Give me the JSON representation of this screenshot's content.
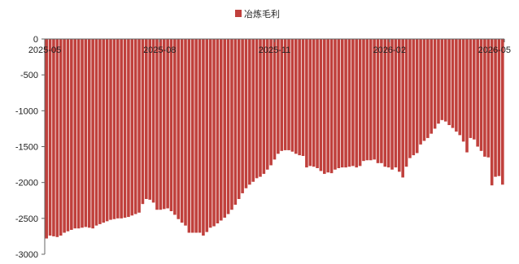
{
  "chart_data": {
    "type": "bar",
    "legend": {
      "label": "冶炼毛利",
      "placement": "top-center"
    },
    "colors": {
      "bar": "#c0403c",
      "axis": "#666666"
    },
    "x_ticks": [
      "2025-05",
      "2025-08",
      "2025-11",
      "2026-02",
      "2026-05"
    ],
    "x_range": [
      "2025-05",
      "2026-05"
    ],
    "ylim": [
      -3000,
      0
    ],
    "y_ticks": [
      0,
      -500,
      -1000,
      -1500,
      -2000,
      -2500,
      -3000
    ],
    "series": [
      {
        "name": "冶炼毛利",
        "values": [
          -2780,
          -2740,
          -2750,
          -2760,
          -2740,
          -2700,
          -2680,
          -2660,
          -2640,
          -2640,
          -2630,
          -2620,
          -2630,
          -2640,
          -2600,
          -2580,
          -2560,
          -2540,
          -2520,
          -2510,
          -2500,
          -2500,
          -2490,
          -2480,
          -2460,
          -2440,
          -2420,
          -2300,
          -2230,
          -2240,
          -2280,
          -2380,
          -2380,
          -2370,
          -2360,
          -2400,
          -2450,
          -2510,
          -2560,
          -2600,
          -2700,
          -2700,
          -2700,
          -2700,
          -2740,
          -2690,
          -2630,
          -2610,
          -2570,
          -2530,
          -2490,
          -2440,
          -2380,
          -2310,
          -2230,
          -2150,
          -2080,
          -2030,
          -1990,
          -1940,
          -1920,
          -1880,
          -1820,
          -1760,
          -1680,
          -1600,
          -1560,
          -1550,
          -1550,
          -1570,
          -1600,
          -1620,
          -1630,
          -1790,
          -1770,
          -1780,
          -1800,
          -1840,
          -1880,
          -1860,
          -1870,
          -1820,
          -1800,
          -1790,
          -1790,
          -1780,
          -1770,
          -1790,
          -1770,
          -1700,
          -1690,
          -1690,
          -1680,
          -1730,
          -1730,
          -1780,
          -1790,
          -1820,
          -1790,
          -1850,
          -1930,
          -1780,
          -1660,
          -1620,
          -1590,
          -1470,
          -1420,
          -1380,
          -1320,
          -1250,
          -1180,
          -1130,
          -1150,
          -1200,
          -1240,
          -1290,
          -1340,
          -1430,
          -1580,
          -1380,
          -1400,
          -1500,
          -1560,
          -1640,
          -1650,
          -2040,
          -1920,
          -1910,
          -2030
        ]
      }
    ]
  }
}
